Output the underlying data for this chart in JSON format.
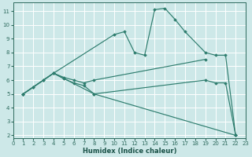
{
  "xlabel": "Humidex (Indice chaleur)",
  "xlim": [
    0,
    23
  ],
  "ylim": [
    1.8,
    11.6
  ],
  "yticks": [
    2,
    3,
    4,
    5,
    6,
    7,
    8,
    9,
    10,
    11
  ],
  "xticks": [
    0,
    1,
    2,
    3,
    4,
    5,
    6,
    7,
    8,
    9,
    10,
    11,
    12,
    13,
    14,
    15,
    16,
    17,
    18,
    19,
    20,
    21,
    22,
    23
  ],
  "bg_color": "#cde8e8",
  "grid_color": "#ffffff",
  "line_color": "#2e7d6e",
  "curve1_x": [
    1,
    2,
    3,
    4,
    10,
    11,
    12,
    13,
    14,
    15,
    16,
    17,
    19,
    20,
    21,
    22
  ],
  "curve1_y": [
    5.0,
    5.5,
    6.0,
    6.5,
    9.3,
    9.5,
    8.0,
    7.8,
    11.1,
    11.2,
    10.4,
    9.5,
    8.0,
    7.8,
    7.8,
    2.0
  ],
  "curve2_x": [
    1,
    2,
    3,
    4,
    5,
    6,
    7,
    8,
    19
  ],
  "curve2_y": [
    5.0,
    5.5,
    6.0,
    6.5,
    6.2,
    6.0,
    5.8,
    6.0,
    7.5
  ],
  "curve3_x": [
    1,
    4,
    5,
    6,
    7,
    8,
    19,
    20,
    21,
    22
  ],
  "curve3_y": [
    5.0,
    6.5,
    6.1,
    5.8,
    5.6,
    5.0,
    6.0,
    5.8,
    5.8,
    2.0
  ],
  "curve4_x": [
    1,
    4,
    8,
    22
  ],
  "curve4_y": [
    5.0,
    6.5,
    5.0,
    2.0
  ]
}
